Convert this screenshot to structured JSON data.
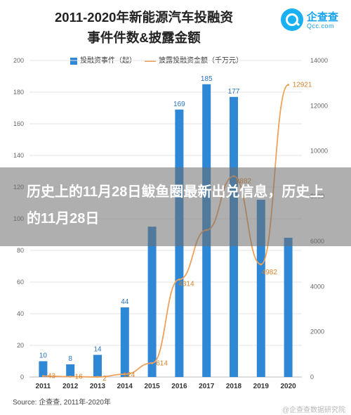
{
  "header": {
    "title_line1": "2011-2020年新能源汽车投融资",
    "title_line2": "事件件数&披露金额"
  },
  "logo": {
    "name": "企查查",
    "sub": "Qcc.com"
  },
  "overlay": {
    "text": "历史上的11月28日鲅鱼圈最新出兑信息，历史上的11月28日"
  },
  "footer": {
    "source": "Source: 企查查, 2011年-2020年",
    "watermark": "@企查查数据研究院"
  },
  "colors": {
    "bar": "#2e88d6",
    "line": "#f0a15a",
    "grid": "#e6e6e6"
  },
  "chart_data": {
    "type": "bar",
    "title": "2011-2020年新能源汽车投融资事件件数&披露金额",
    "categories": [
      "2011",
      "2012",
      "2013",
      "2014",
      "2015",
      "2016",
      "2017",
      "2018",
      "2019",
      "2020"
    ],
    "series": [
      {
        "name": "投融资事件（起）",
        "type": "bar",
        "axis": "left",
        "values": [
          10,
          8,
          14,
          44,
          95,
          169,
          185,
          177,
          112,
          88
        ],
        "labels": [
          "10",
          "8",
          "14",
          "44",
          "",
          "169",
          "185",
          "177",
          "",
          ""
        ]
      },
      {
        "name": "披露投融资金额（千万元）",
        "type": "line",
        "axis": "right",
        "values": [
          43,
          16,
          2,
          124,
          614,
          4314,
          6500,
          8882,
          4982,
          12921
        ],
        "labels": [
          "43",
          "16",
          "2",
          "124",
          "614",
          "4314",
          "",
          "8882",
          "4982",
          "12921"
        ]
      }
    ],
    "y_left": {
      "min": 0,
      "max": 200,
      "ticks": [
        0,
        20,
        40,
        60,
        80,
        100,
        120,
        140,
        160,
        180,
        200
      ]
    },
    "y_right": {
      "min": 0,
      "max": 14000,
      "ticks": [
        0,
        2000,
        4000,
        6000,
        8000,
        10000,
        12000,
        14000
      ]
    },
    "grid": true,
    "legend_position": "top"
  }
}
